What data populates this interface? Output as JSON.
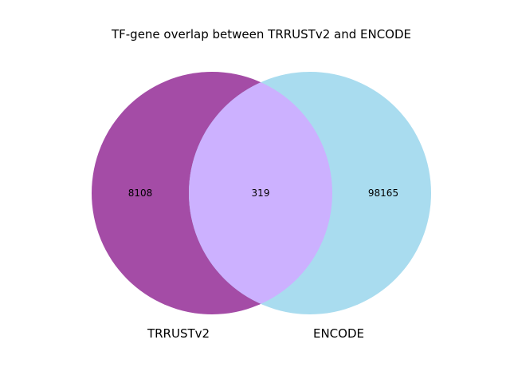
{
  "title": "TF-gene overlap between TRRUSTv2 and ENCODE",
  "sets": [
    {
      "name": "TRRUSTv2",
      "only_count": "8108",
      "color": "#a44ca6"
    },
    {
      "name": "ENCODE",
      "only_count": "98165",
      "color": "#a9dcef"
    }
  ],
  "intersection": {
    "count": "319",
    "color": "#ccb1ff"
  }
}
